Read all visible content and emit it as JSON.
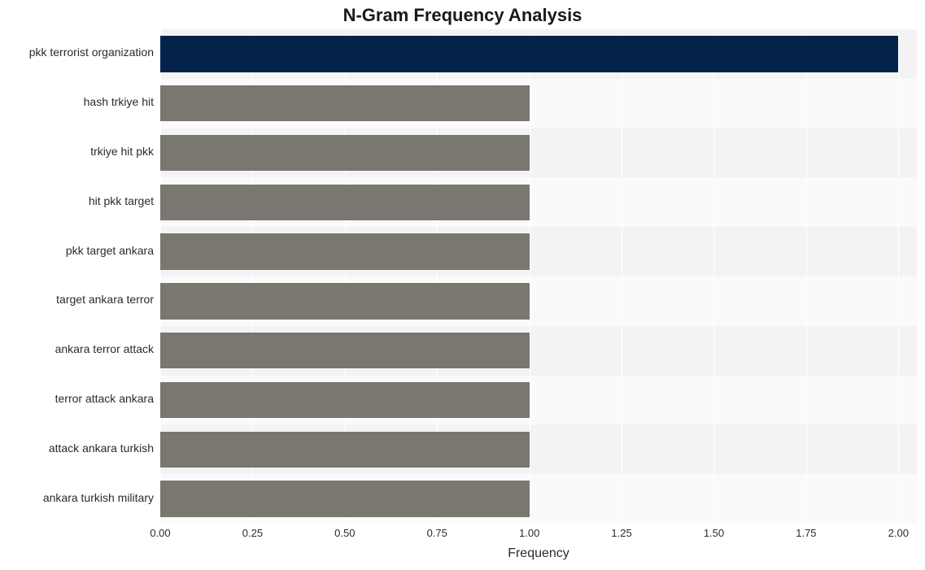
{
  "chart": {
    "type": "bar-horizontal",
    "title": "N-Gram Frequency Analysis",
    "title_fontsize": 22,
    "background_color": "#ffffff",
    "plot_background_color": "#fafafa",
    "grid_band_color": "#f3f3f3",
    "grid_line_color": "#ffffff",
    "xlabel": "Frequency",
    "xlabel_fontsize": 16,
    "ylabel_fontsize": 14,
    "xtick_fontsize": 13,
    "xlim": [
      0,
      2.05
    ],
    "xticks": [
      {
        "value": 0.0,
        "label": "0.00"
      },
      {
        "value": 0.25,
        "label": "0.25"
      },
      {
        "value": 0.5,
        "label": "0.50"
      },
      {
        "value": 0.75,
        "label": "0.75"
      },
      {
        "value": 1.0,
        "label": "1.00"
      },
      {
        "value": 1.25,
        "label": "1.25"
      },
      {
        "value": 1.5,
        "label": "1.50"
      },
      {
        "value": 1.75,
        "label": "1.75"
      },
      {
        "value": 2.0,
        "label": "2.00"
      }
    ],
    "categories": [
      "pkk terrorist organization",
      "hash trkiye hit",
      "trkiye hit pkk",
      "hit pkk target",
      "pkk target ankara",
      "target ankara terror",
      "ankara terror attack",
      "terror attack ankara",
      "attack ankara turkish",
      "ankara turkish military"
    ],
    "values": [
      2,
      1,
      1,
      1,
      1,
      1,
      1,
      1,
      1,
      1
    ],
    "bar_colors": [
      "#04234a",
      "#7a7670",
      "#7a7670",
      "#7a7670",
      "#7a7670",
      "#7a7670",
      "#7a7670",
      "#7a7670",
      "#7a7670",
      "#7a7670"
    ],
    "bar_height_ratio": 0.73,
    "text_color": "#2b2b2b"
  }
}
